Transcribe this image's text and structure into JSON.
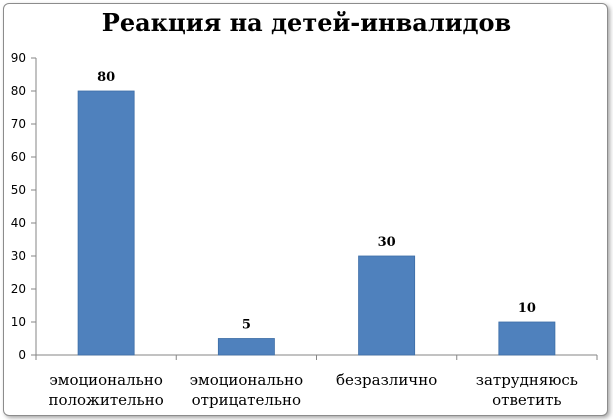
{
  "chart_data": {
    "type": "bar",
    "title": "Реакция на детей-инвалидов",
    "categories": [
      [
        "эмоционально",
        "положительно"
      ],
      [
        "эмоционально",
        "отрицательно"
      ],
      [
        "безразлично"
      ],
      [
        "затрудняюсь",
        "ответить"
      ]
    ],
    "values": [
      80,
      5,
      30,
      10
    ],
    "data_labels": [
      "80",
      "5",
      "30",
      "10"
    ],
    "ylim": [
      0,
      90
    ],
    "yticks": [
      0,
      10,
      20,
      30,
      40,
      50,
      60,
      70,
      80,
      90
    ],
    "xlabel": "",
    "ylabel": "",
    "grid": false,
    "legend": "none",
    "colors": {
      "bar": "#4f81bd",
      "bar_edge": "#3c6da6",
      "axis": "#868686",
      "text": "#000000"
    }
  }
}
